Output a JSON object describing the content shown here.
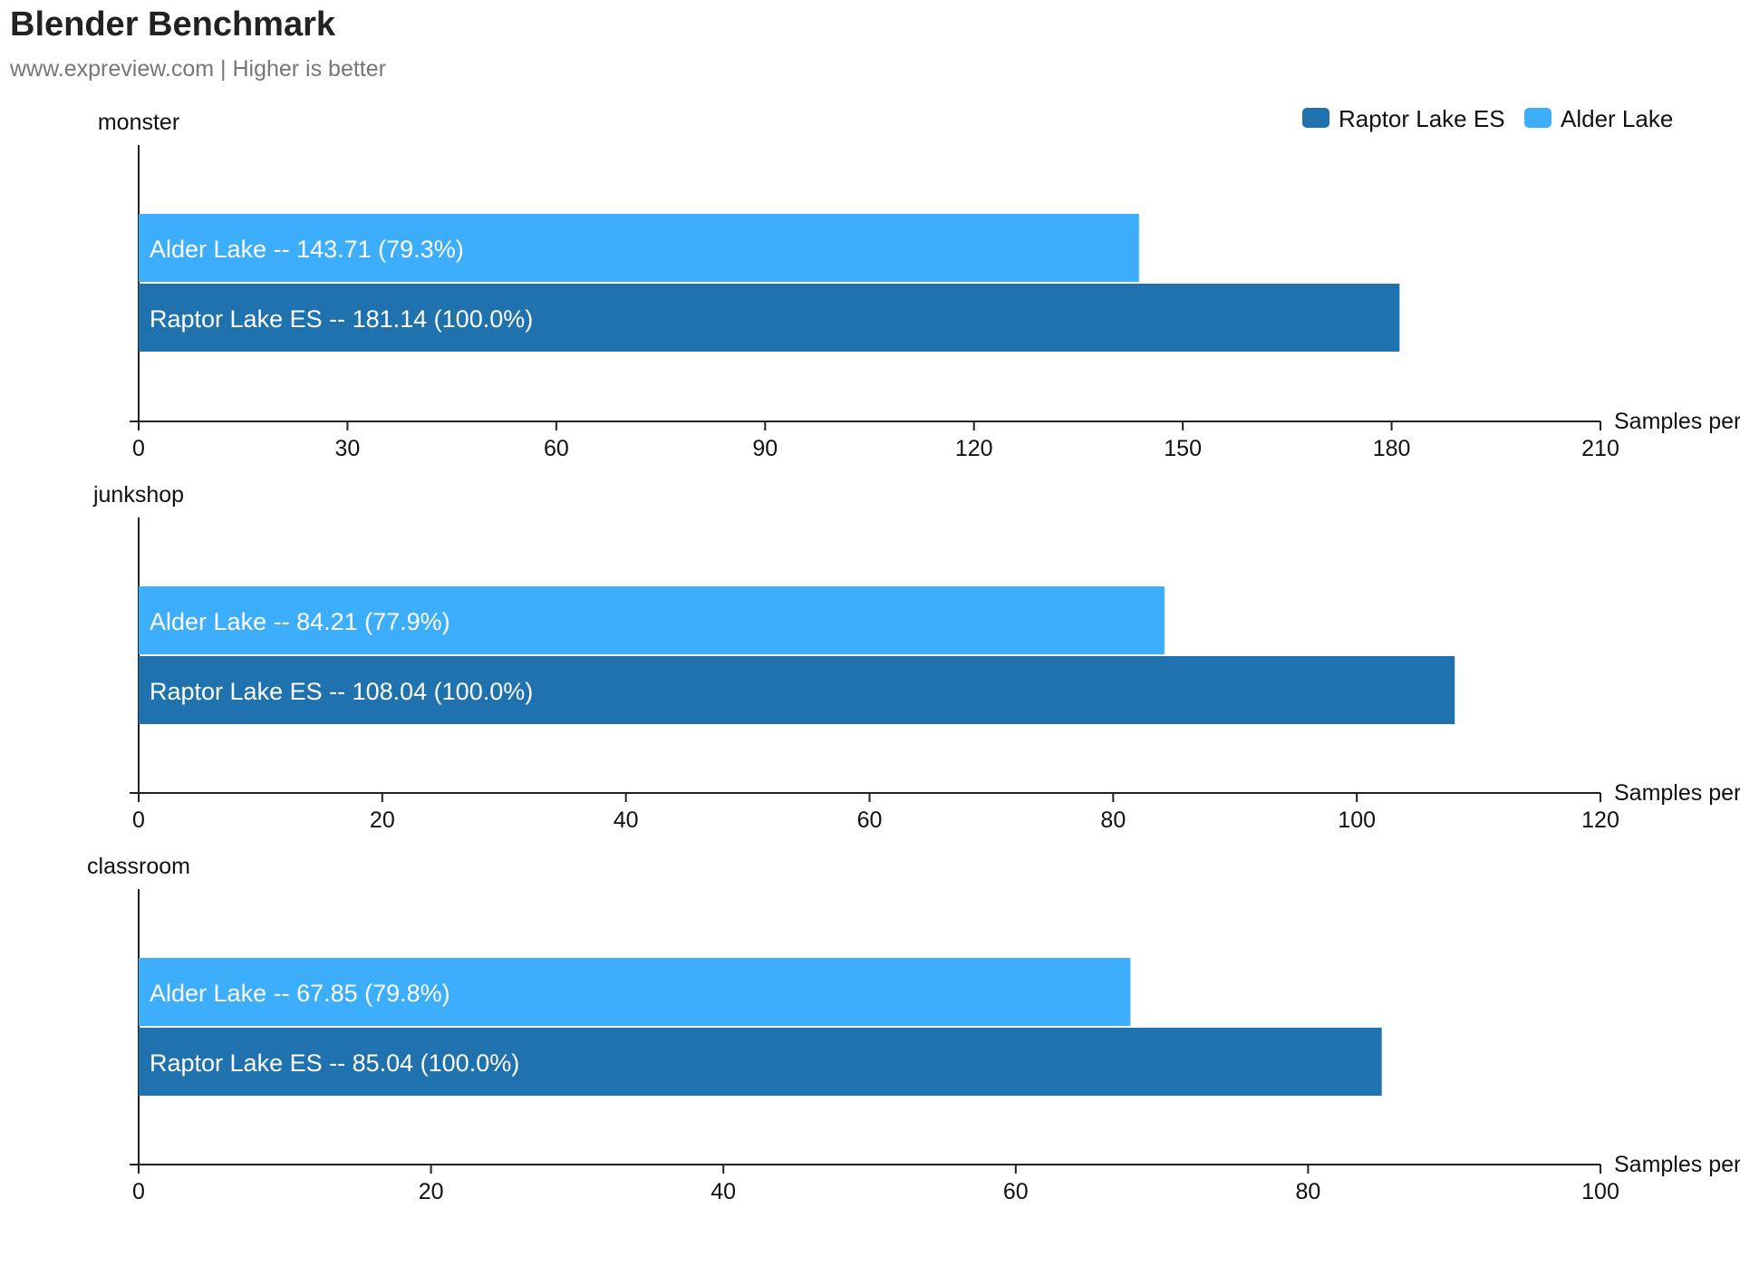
{
  "title": "Blender Benchmark",
  "subtitle": "www.expreview.com | Higher is better",
  "legend": [
    {
      "name": "Raptor Lake ES",
      "color": "#1f72ae"
    },
    {
      "name": "Alder Lake",
      "color": "#3daefc"
    }
  ],
  "colors": {
    "raptor_lake_es": "#1f72ae",
    "alder_lake": "#3daefc",
    "axis": "#222222",
    "bar_text": "#ffffff"
  },
  "chart_data": [
    {
      "type": "bar",
      "orientation": "horizontal",
      "category": "monster",
      "xlabel": "Samples per",
      "xlim": [
        0,
        210
      ],
      "ticks": [
        0,
        30,
        60,
        90,
        120,
        150,
        180,
        210
      ],
      "grid": false,
      "legend_position": "top-right",
      "series": [
        {
          "name": "Alder Lake",
          "value": 143.71,
          "percent": "79.3%",
          "label": "Alder Lake  --  143.71 (79.3%)"
        },
        {
          "name": "Raptor Lake ES",
          "value": 181.14,
          "percent": "100.0%",
          "label": "Raptor Lake ES  --  181.14 (100.0%)"
        }
      ]
    },
    {
      "type": "bar",
      "orientation": "horizontal",
      "category": "junkshop",
      "xlabel": "Samples per",
      "xlim": [
        0,
        120
      ],
      "ticks": [
        0,
        20,
        40,
        60,
        80,
        100,
        120
      ],
      "grid": false,
      "series": [
        {
          "name": "Alder Lake",
          "value": 84.21,
          "percent": "77.9%",
          "label": "Alder Lake  --  84.21 (77.9%)"
        },
        {
          "name": "Raptor Lake ES",
          "value": 108.04,
          "percent": "100.0%",
          "label": "Raptor Lake ES  --  108.04 (100.0%)"
        }
      ]
    },
    {
      "type": "bar",
      "orientation": "horizontal",
      "category": "classroom",
      "xlabel": "Samples per",
      "xlim": [
        0,
        100
      ],
      "ticks": [
        0,
        20,
        40,
        60,
        80,
        100
      ],
      "grid": false,
      "series": [
        {
          "name": "Alder Lake",
          "value": 67.85,
          "percent": "79.8%",
          "label": "Alder Lake  --  67.85 (79.8%)"
        },
        {
          "name": "Raptor Lake ES",
          "value": 85.04,
          "percent": "100.0%",
          "label": "Raptor Lake ES  --  85.04 (100.0%)"
        }
      ]
    }
  ]
}
